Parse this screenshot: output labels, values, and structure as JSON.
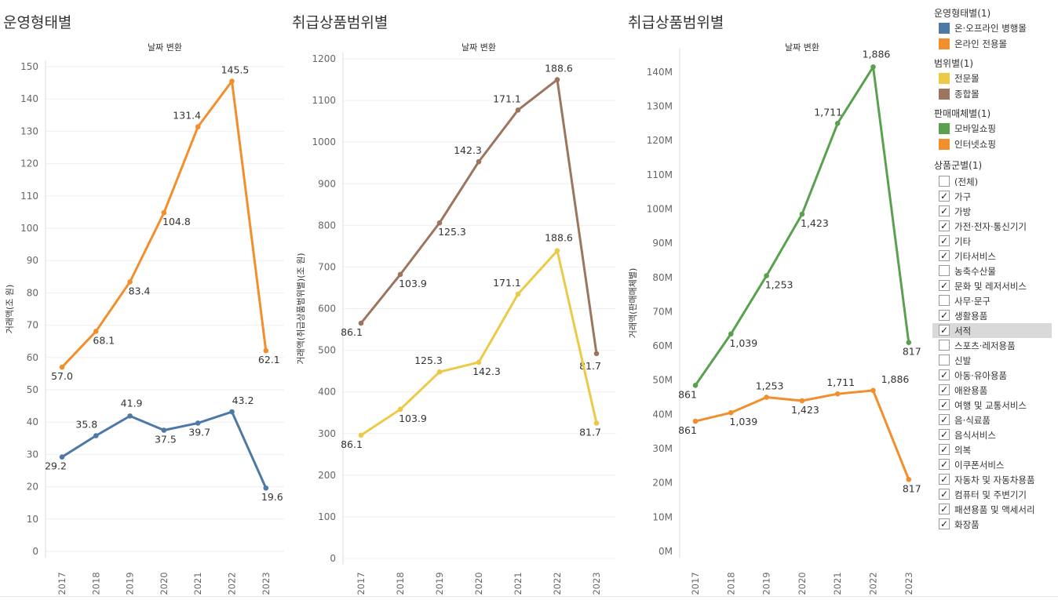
{
  "panels": [
    {
      "title": "운영형태별"
    },
    {
      "title": "취급상품범위별"
    },
    {
      "title": "취급상품범위별"
    }
  ],
  "legend": {
    "sections": [
      {
        "title": "운영형태별(1)",
        "items": [
          {
            "label": "온·오프라인 병행몰",
            "color": "#4e79a7"
          },
          {
            "label": "온라인 전용몰",
            "color": "#f28e2b"
          }
        ]
      },
      {
        "title": "범위별(1)",
        "items": [
          {
            "label": "전문몰",
            "color": "#edc948"
          },
          {
            "label": "종합몰",
            "color": "#9c755f"
          }
        ]
      },
      {
        "title": "판매매체별(1)",
        "items": [
          {
            "label": "모바일쇼핑",
            "color": "#59a14f"
          },
          {
            "label": "인터넷쇼핑",
            "color": "#f28e2b"
          }
        ]
      }
    ],
    "filter": {
      "title": "상품군별(1)",
      "items": [
        {
          "label": "(전체)",
          "checked": false
        },
        {
          "label": "가구",
          "checked": true
        },
        {
          "label": "가방",
          "checked": true
        },
        {
          "label": "가전·전자·통신기기",
          "checked": true
        },
        {
          "label": "기타",
          "checked": true
        },
        {
          "label": "기타서비스",
          "checked": true
        },
        {
          "label": "농축수산물",
          "checked": false
        },
        {
          "label": "문화 및 레저서비스",
          "checked": true
        },
        {
          "label": "사무·문구",
          "checked": false
        },
        {
          "label": "생활용품",
          "checked": true
        },
        {
          "label": "서적",
          "checked": true,
          "highlighted": true
        },
        {
          "label": "스포츠·레저용품",
          "checked": false
        },
        {
          "label": "신발",
          "checked": false
        },
        {
          "label": "아동·유아용품",
          "checked": true
        },
        {
          "label": "애완용품",
          "checked": true
        },
        {
          "label": "여행 및 교통서비스",
          "checked": true
        },
        {
          "label": "음·식료품",
          "checked": true
        },
        {
          "label": "음식서비스",
          "checked": true
        },
        {
          "label": "의복",
          "checked": true
        },
        {
          "label": "이쿠폰서비스",
          "checked": true
        },
        {
          "label": "자동차 및 자동차용품",
          "checked": true
        },
        {
          "label": "컴퓨터 및 주변기기",
          "checked": true
        },
        {
          "label": "패션용품 및 액세서리",
          "checked": true
        },
        {
          "label": "화장품",
          "checked": true
        }
      ]
    }
  },
  "chart_data": [
    {
      "type": "line",
      "title": "운영형태별",
      "subtitle": "날짜 변환",
      "ylabel": "거래액(조 원)",
      "x": [
        "2017",
        "2018",
        "2019",
        "2020",
        "2021",
        "2022",
        "2023"
      ],
      "ylim": [
        0,
        150
      ],
      "yticks": [
        0,
        10,
        20,
        30,
        40,
        50,
        60,
        70,
        80,
        90,
        100,
        110,
        120,
        130,
        140,
        150
      ],
      "grid": true,
      "series": [
        {
          "name": "온라인 전용몰",
          "color": "#f28e2b",
          "values": [
            57.0,
            68.1,
            83.4,
            104.8,
            131.4,
            145.5,
            62.1
          ],
          "labels": [
            "57.0",
            "68.1",
            "83.4",
            "104.8",
            "131.4",
            "145.5",
            "62.1"
          ]
        },
        {
          "name": "온·오프라인 병행몰",
          "color": "#4e79a7",
          "values": [
            29.2,
            35.8,
            41.9,
            37.5,
            39.7,
            43.2,
            19.6
          ],
          "labels": [
            "29.2",
            "35.8",
            "41.9",
            "37.5",
            "39.7",
            "43.2",
            "19.6"
          ]
        }
      ]
    },
    {
      "type": "line",
      "title": "취급상품범위별",
      "subtitle": "날짜 변환",
      "ylabel": "거래액(취급상품범위별)(조 원)",
      "x": [
        "2017",
        "2018",
        "2019",
        "2020",
        "2021",
        "2022",
        "2023"
      ],
      "ylim": [
        0,
        1200
      ],
      "yticks": [
        0,
        100,
        200,
        300,
        400,
        500,
        600,
        700,
        800,
        900,
        1000,
        1100,
        1200
      ],
      "grid": true,
      "series": [
        {
          "name": "종합몰",
          "color": "#9c755f",
          "values": [
            565,
            682,
            806,
            953,
            1077,
            1150,
            492
          ],
          "labels": [
            "86.1",
            "103.9",
            "125.3",
            "142.3",
            "171.1",
            "188.6",
            "81.7"
          ]
        },
        {
          "name": "전문몰",
          "color": "#edc948",
          "values": [
            296,
            358,
            448,
            471,
            635,
            739,
            325
          ],
          "labels": [
            "86.1",
            "103.9",
            "125.3",
            "142.3",
            "171.1",
            "188.6",
            "81.7"
          ]
        }
      ]
    },
    {
      "type": "line",
      "title": "취급상품범위별",
      "subtitle": "날짜 변환",
      "ylabel": "거래액(판매매체별)",
      "x": [
        "2017",
        "2018",
        "2019",
        "2020",
        "2021",
        "2022",
        "2023"
      ],
      "ylim": [
        0,
        145000000
      ],
      "yticks": [
        0,
        10000000,
        20000000,
        30000000,
        40000000,
        50000000,
        60000000,
        70000000,
        80000000,
        90000000,
        100000000,
        110000000,
        120000000,
        130000000,
        140000000
      ],
      "ytick_labels": [
        "0M",
        "10M",
        "20M",
        "30M",
        "40M",
        "50M",
        "60M",
        "70M",
        "80M",
        "90M",
        "100M",
        "110M",
        "120M",
        "130M",
        "140M"
      ],
      "grid": false,
      "series": [
        {
          "name": "모바일쇼핑",
          "color": "#59a14f",
          "values": [
            48500000,
            63500000,
            80500000,
            98500000,
            125000000,
            141500000,
            61000000
          ],
          "labels": [
            "861",
            "1,039",
            "1,253",
            "1,423",
            "1,711",
            "1,886",
            "817"
          ]
        },
        {
          "name": "인터넷쇼핑",
          "color": "#f28e2b",
          "values": [
            38000000,
            40500000,
            45000000,
            44000000,
            46000000,
            47000000,
            21000000
          ],
          "labels": [
            "861",
            "1,039",
            "1,253",
            "1,423",
            "1,711",
            "1,886",
            "817"
          ]
        }
      ]
    }
  ]
}
